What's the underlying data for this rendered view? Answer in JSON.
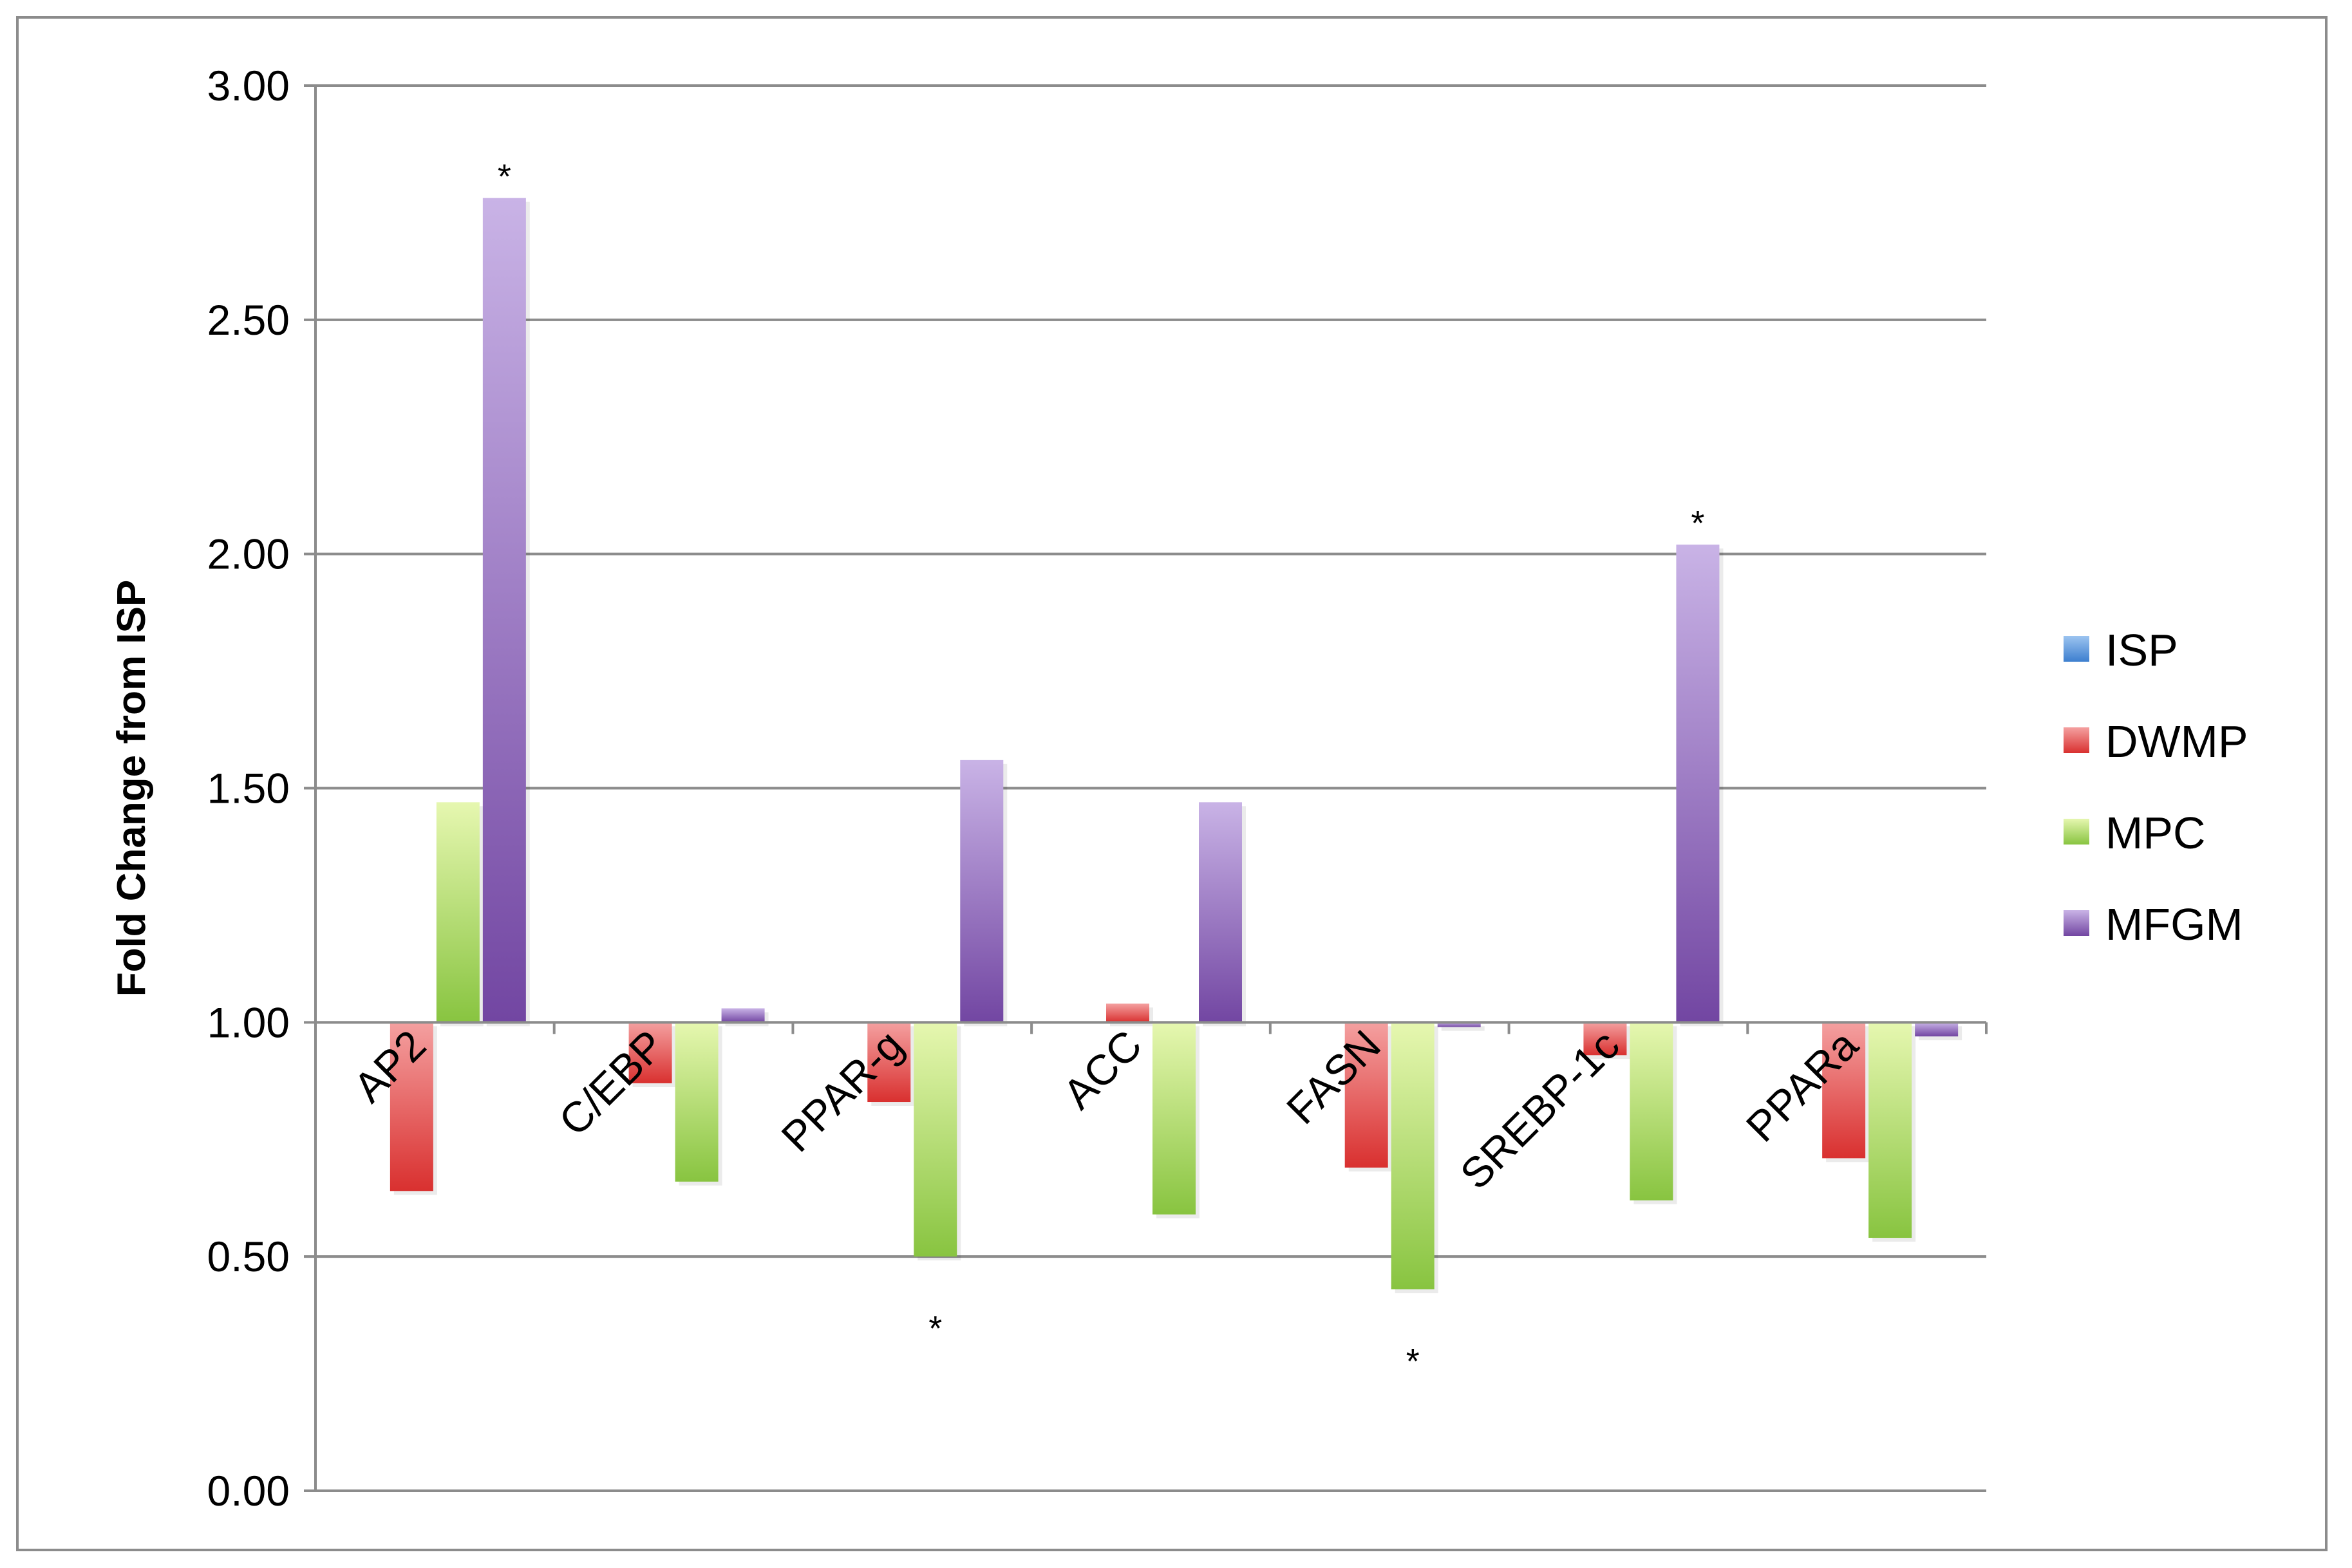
{
  "chart_data": {
    "type": "bar",
    "title": "",
    "xlabel": "",
    "ylabel": "Fold Change from ISP",
    "ylim": [
      0,
      3
    ],
    "baseline": 1.0,
    "yticks": [
      "0.00",
      "0.50",
      "1.00",
      "1.50",
      "2.00",
      "2.50",
      "3.00"
    ],
    "ytick_values": [
      0,
      0.5,
      1.0,
      1.5,
      2.0,
      2.5,
      3.0
    ],
    "grid": true,
    "legend_position": "right",
    "categories": [
      "AP2",
      "C/EBP",
      "PPAR-g",
      "ACC",
      "FASN",
      "SREBP-1c",
      "PPARa"
    ],
    "series": [
      {
        "name": "ISP",
        "color": "#4a8fdc",
        "values": [
          1.0,
          1.0,
          1.0,
          1.0,
          1.0,
          1.0,
          1.0
        ]
      },
      {
        "name": "DWMP",
        "color": "#e0393a",
        "values": [
          0.64,
          0.87,
          0.83,
          1.04,
          0.69,
          0.93,
          0.71
        ]
      },
      {
        "name": "MPC",
        "color": "#8cc63f",
        "values": [
          1.47,
          0.66,
          0.5,
          0.59,
          0.43,
          0.62,
          0.54
        ]
      },
      {
        "name": "MFGM",
        "color": "#7b4fa8",
        "values": [
          2.76,
          1.03,
          1.56,
          1.47,
          0.99,
          2.02,
          0.97
        ]
      }
    ],
    "annotations": [
      {
        "text": "*",
        "category": "AP2",
        "series": "MFGM"
      },
      {
        "text": "*",
        "category": "PPAR-g",
        "series": "MPC"
      },
      {
        "text": "*",
        "category": "FASN",
        "series": "MPC"
      },
      {
        "text": "*",
        "category": "SREBP-1c",
        "series": "MFGM"
      }
    ]
  }
}
